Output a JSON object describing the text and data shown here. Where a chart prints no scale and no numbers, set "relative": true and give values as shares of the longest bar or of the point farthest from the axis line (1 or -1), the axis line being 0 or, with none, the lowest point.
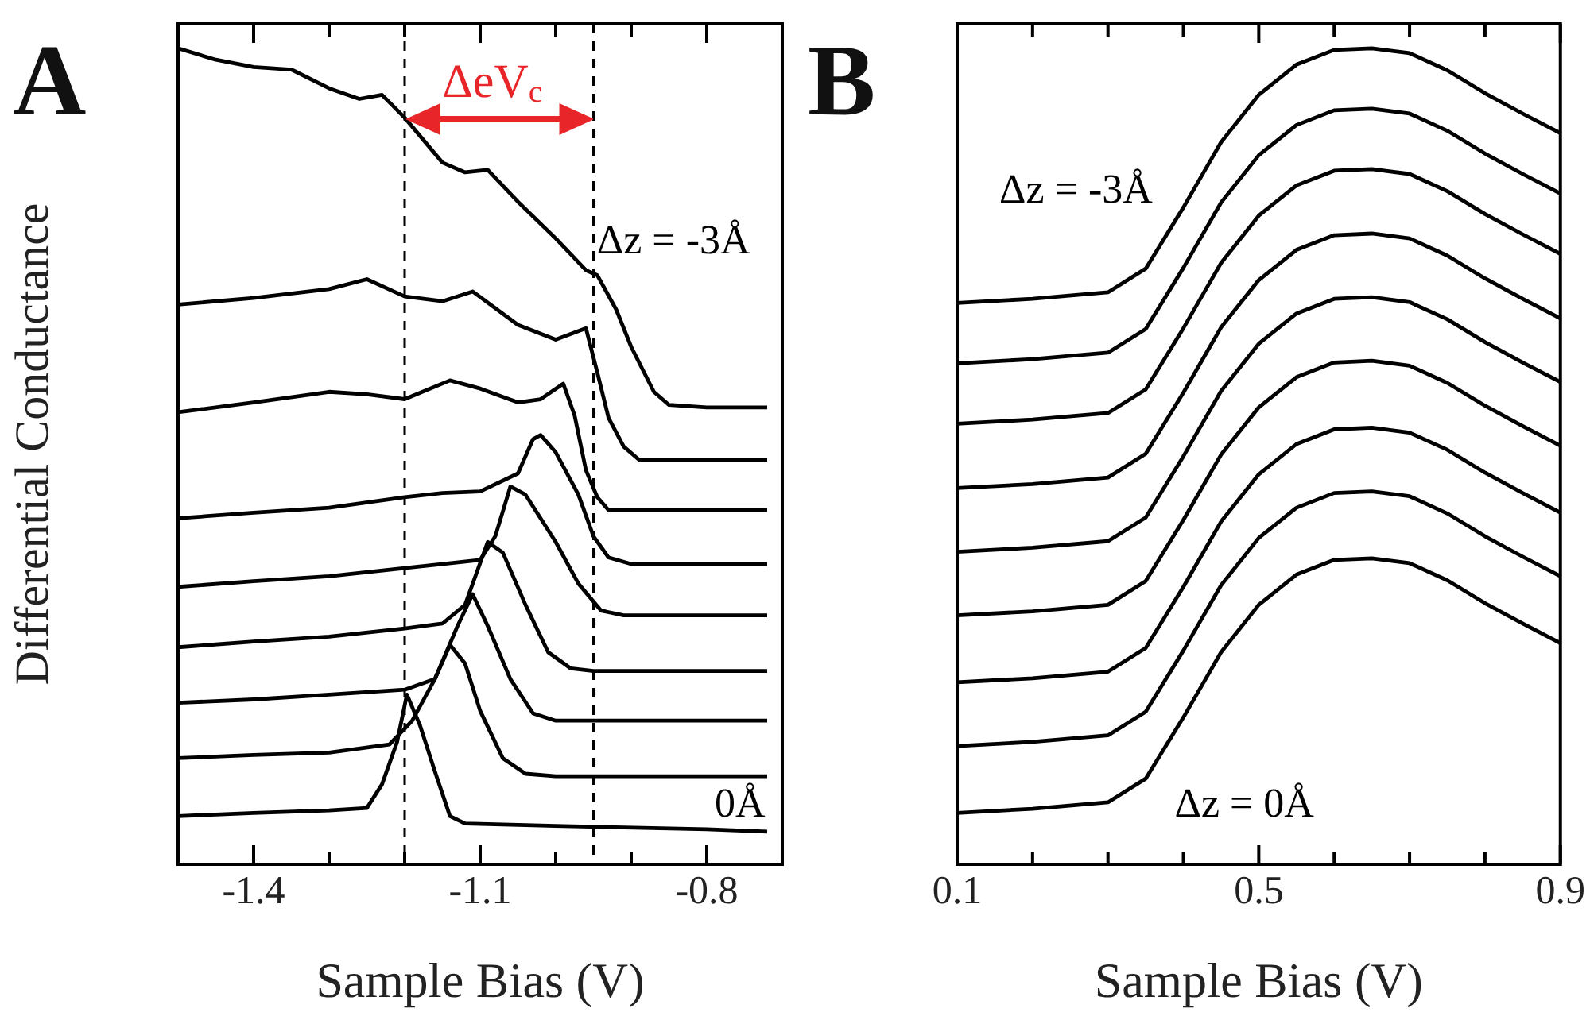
{
  "chart_data": [
    {
      "type": "line",
      "title": "A",
      "xlabel": "Sample Bias (V)",
      "ylabel": "Differential Conductance",
      "relative": true,
      "marker": "none",
      "xlim": [
        -1.5,
        -0.7
      ],
      "xticks": [
        {
          "value": -1.5,
          "label": null
        },
        -1.4,
        {
          "value": -1.3,
          "label": null
        },
        {
          "value": -1.2,
          "label": null
        },
        -1.1,
        {
          "value": -1.0,
          "label": null
        },
        {
          "value": -0.9,
          "label": null
        },
        -0.8,
        {
          "value": -0.7,
          "label": null
        }
      ],
      "series": [
        {
          "color": "#000000",
          "x": [
            -1.5,
            -1.45,
            -1.4,
            -1.35,
            -1.3,
            -1.26,
            -1.23,
            -1.2,
            -1.15,
            -1.12,
            -1.09,
            -1.05,
            -1.0,
            -0.96,
            -0.945,
            -0.92,
            -0.9,
            -0.87,
            -0.85,
            -0.8,
            -0.72
          ],
          "values": [
            1.0,
            0.986,
            0.977,
            0.974,
            0.951,
            0.938,
            0.943,
            0.915,
            0.86,
            0.848,
            0.851,
            0.812,
            0.767,
            0.728,
            0.722,
            0.68,
            0.634,
            0.579,
            0.563,
            0.56,
            0.56
          ]
        },
        {
          "color": "#000000",
          "x": [
            -1.5,
            -1.4,
            -1.3,
            -1.25,
            -1.2,
            -1.15,
            -1.11,
            -1.05,
            -1.0,
            -0.96,
            -0.945,
            -0.93,
            -0.91,
            -0.89,
            -0.8,
            -0.72
          ],
          "values": [
            0.686,
            0.694,
            0.705,
            0.717,
            0.696,
            0.69,
            0.702,
            0.661,
            0.643,
            0.657,
            0.603,
            0.547,
            0.512,
            0.496,
            0.496,
            0.496
          ]
        },
        {
          "color": "#000000",
          "x": [
            -1.5,
            -1.4,
            -1.3,
            -1.25,
            -1.2,
            -1.14,
            -1.1,
            -1.05,
            -1.02,
            -0.99,
            -0.975,
            -0.96,
            -0.945,
            -0.93,
            -0.8,
            -0.72
          ],
          "values": [
            0.554,
            0.566,
            0.579,
            0.576,
            0.57,
            0.593,
            0.583,
            0.566,
            0.57,
            0.589,
            0.55,
            0.483,
            0.45,
            0.434,
            0.434,
            0.434
          ]
        },
        {
          "color": "#000000",
          "x": [
            -1.5,
            -1.4,
            -1.3,
            -1.2,
            -1.15,
            -1.1,
            -1.05,
            -1.03,
            -1.02,
            -1.0,
            -0.97,
            -0.95,
            -0.93,
            -0.9,
            -0.8,
            -0.72
          ],
          "values": [
            0.424,
            0.431,
            0.437,
            0.45,
            0.455,
            0.457,
            0.479,
            0.521,
            0.526,
            0.505,
            0.453,
            0.402,
            0.376,
            0.368,
            0.368,
            0.368
          ]
        },
        {
          "color": "#000000",
          "x": [
            -1.5,
            -1.4,
            -1.3,
            -1.2,
            -1.1,
            -1.08,
            -1.06,
            -1.04,
            -1.0,
            -0.97,
            -0.94,
            -0.91,
            -0.8,
            -0.72
          ],
          "values": [
            0.34,
            0.347,
            0.353,
            0.363,
            0.373,
            0.402,
            0.463,
            0.453,
            0.395,
            0.344,
            0.311,
            0.305,
            0.305,
            0.305
          ]
        },
        {
          "color": "#000000",
          "x": [
            -1.5,
            -1.4,
            -1.3,
            -1.2,
            -1.15,
            -1.12,
            -1.09,
            -1.07,
            -1.04,
            -1.01,
            -0.98,
            -0.95,
            -0.8,
            -0.72
          ],
          "values": [
            0.266,
            0.273,
            0.279,
            0.289,
            0.295,
            0.318,
            0.395,
            0.382,
            0.318,
            0.26,
            0.24,
            0.237,
            0.237,
            0.237
          ]
        },
        {
          "color": "#000000",
          "x": [
            -1.5,
            -1.4,
            -1.3,
            -1.2,
            -1.16,
            -1.13,
            -1.11,
            -1.09,
            -1.06,
            -1.03,
            -1.0,
            -0.8,
            -0.72
          ],
          "values": [
            0.198,
            0.202,
            0.208,
            0.214,
            0.227,
            0.292,
            0.331,
            0.292,
            0.227,
            0.185,
            0.176,
            0.176,
            0.176
          ]
        },
        {
          "color": "#000000",
          "x": [
            -1.5,
            -1.4,
            -1.3,
            -1.22,
            -1.19,
            -1.16,
            -1.14,
            -1.12,
            -1.1,
            -1.07,
            -1.04,
            -1.0,
            -0.8,
            -0.72
          ],
          "values": [
            0.13,
            0.134,
            0.137,
            0.147,
            0.176,
            0.227,
            0.269,
            0.246,
            0.188,
            0.13,
            0.111,
            0.108,
            0.108,
            0.108
          ]
        },
        {
          "color": "#000000",
          "x": [
            -1.5,
            -1.4,
            -1.3,
            -1.25,
            -1.23,
            -1.21,
            -1.197,
            -1.18,
            -1.16,
            -1.14,
            -1.12,
            -1.0,
            -0.8,
            -0.72
          ],
          "values": [
            0.059,
            0.063,
            0.066,
            0.069,
            0.098,
            0.15,
            0.208,
            0.171,
            0.114,
            0.059,
            0.05,
            0.047,
            0.043,
            0.04
          ]
        }
      ],
      "ref_lines": [
        {
          "axis": "x",
          "value": -1.2,
          "color": "#000000",
          "line_style": "dashed"
        },
        {
          "axis": "x",
          "value": -0.95,
          "color": "#000000",
          "line_style": "dashed"
        }
      ],
      "annotations": [
        "ΔeV$_{c}$",
        "Δz = -3Å",
        "0Å"
      ]
    },
    {
      "type": "line",
      "title": "B",
      "xlabel": "Sample Bias (V)",
      "relative": true,
      "marker": "none",
      "xlim": [
        0.1,
        0.9
      ],
      "xticks": [
        0.1,
        {
          "value": 0.2,
          "label": null
        },
        {
          "value": 0.3,
          "label": null
        },
        {
          "value": 0.4,
          "label": null
        },
        0.5,
        {
          "value": 0.6,
          "label": null
        },
        {
          "value": 0.7,
          "label": null
        },
        {
          "value": 0.8,
          "label": null
        },
        0.9
      ],
      "x": [
        0.1,
        0.2,
        0.3,
        0.35,
        0.4,
        0.45,
        0.5,
        0.55,
        0.6,
        0.65,
        0.7,
        0.75,
        0.8,
        0.85,
        0.9
      ],
      "series": [
        {
          "color": "#000000",
          "values": [
            0.688,
            0.693,
            0.701,
            0.73,
            0.805,
            0.885,
            0.943,
            0.98,
            0.998,
            1.0,
            0.994,
            0.973,
            0.945,
            0.92,
            0.896
          ]
        },
        {
          "color": "#000000",
          "values": [
            0.614,
            0.619,
            0.627,
            0.656,
            0.731,
            0.811,
            0.869,
            0.906,
            0.924,
            0.926,
            0.92,
            0.899,
            0.871,
            0.846,
            0.822
          ]
        },
        {
          "color": "#000000",
          "values": [
            0.54,
            0.545,
            0.553,
            0.582,
            0.657,
            0.737,
            0.795,
            0.832,
            0.85,
            0.852,
            0.846,
            0.825,
            0.797,
            0.772,
            0.748
          ]
        },
        {
          "color": "#000000",
          "values": [
            0.461,
            0.466,
            0.474,
            0.503,
            0.578,
            0.658,
            0.716,
            0.753,
            0.771,
            0.773,
            0.767,
            0.746,
            0.718,
            0.693,
            0.669
          ]
        },
        {
          "color": "#000000",
          "values": [
            0.383,
            0.388,
            0.396,
            0.425,
            0.5,
            0.58,
            0.638,
            0.675,
            0.693,
            0.695,
            0.689,
            0.668,
            0.64,
            0.615,
            0.591
          ]
        },
        {
          "color": "#000000",
          "values": [
            0.305,
            0.31,
            0.318,
            0.347,
            0.422,
            0.502,
            0.56,
            0.597,
            0.615,
            0.617,
            0.611,
            0.59,
            0.562,
            0.537,
            0.513
          ]
        },
        {
          "color": "#000000",
          "values": [
            0.223,
            0.228,
            0.236,
            0.265,
            0.34,
            0.42,
            0.478,
            0.515,
            0.533,
            0.535,
            0.529,
            0.508,
            0.48,
            0.455,
            0.431
          ]
        },
        {
          "color": "#000000",
          "values": [
            0.145,
            0.15,
            0.158,
            0.187,
            0.262,
            0.342,
            0.4,
            0.437,
            0.455,
            0.457,
            0.451,
            0.43,
            0.402,
            0.377,
            0.353
          ]
        },
        {
          "color": "#000000",
          "values": [
            0.063,
            0.068,
            0.076,
            0.105,
            0.18,
            0.26,
            0.318,
            0.355,
            0.373,
            0.375,
            0.369,
            0.348,
            0.32,
            0.295,
            0.271
          ]
        }
      ],
      "annotations": [
        "Δz = -3Å",
        "Δz = 0Å"
      ]
    }
  ]
}
